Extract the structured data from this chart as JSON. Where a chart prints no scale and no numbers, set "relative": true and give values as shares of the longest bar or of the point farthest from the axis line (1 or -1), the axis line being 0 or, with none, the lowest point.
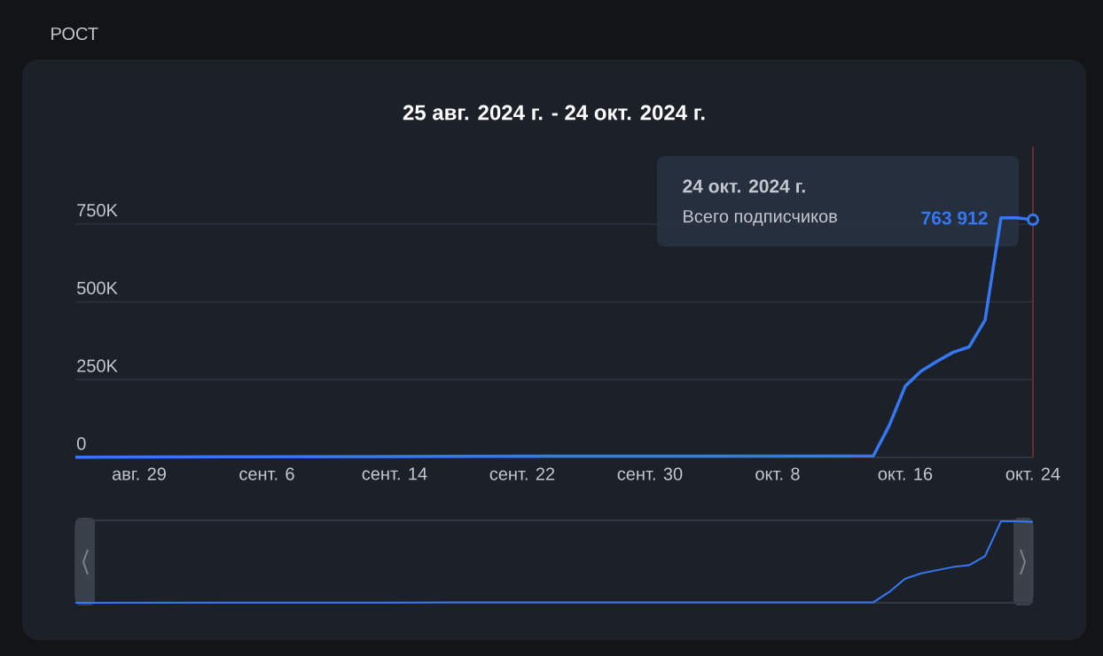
{
  "chart_data": [
    {
      "type": "line",
      "title": "25 авг. 2024 г. - 24 окт. 2024 г.",
      "annotations": [
        "РОСТ",
        "24 окт. 2024 г.",
        "Всего подписчиков",
        "763 912"
      ],
      "x": [
        "2024-08-25",
        "2024-09-04",
        "2024-09-14",
        "2024-09-24",
        "2024-10-04",
        "2024-10-14",
        "2024-10-15",
        "2024-10-16",
        "2024-10-17",
        "2024-10-18",
        "2024-10-19",
        "2024-10-20",
        "2024-10-21",
        "2024-10-22",
        "2024-10-23",
        "2024-10-24"
      ],
      "series": [
        {
          "color": "#3478f6",
          "values": [
            1000,
            2000,
            3000,
            4000,
            4000,
            5000,
            103000,
            229000,
            278000,
            309000,
            338000,
            355000,
            441000,
            770000,
            770000,
            763912
          ]
        }
      ],
      "xlim": [
        "2024-08-25",
        "2024-10-24"
      ],
      "xticks": [
        {
          "value": "2024-08-29",
          "label": "авг. 29"
        },
        {
          "value": "2024-09-06",
          "label": "сент. 6"
        },
        {
          "value": "2024-09-14",
          "label": "сент. 14"
        },
        {
          "value": "2024-09-22",
          "label": "сент. 22"
        },
        {
          "value": "2024-09-30",
          "label": "сент. 30"
        },
        {
          "value": "2024-10-08",
          "label": "окт. 8"
        },
        {
          "value": "2024-10-16",
          "label": "окт. 16"
        },
        {
          "value": "2024-10-24",
          "label": "окт. 24"
        }
      ],
      "ylim": [
        0,
        1000000
      ],
      "yticks": [
        0,
        {
          "value": 250000,
          "label": "250K"
        },
        {
          "value": 500000,
          "label": "500K"
        },
        {
          "value": 750000,
          "label": "750K"
        }
      ],
      "grid": "y",
      "ref_lines": [
        {
          "axis": "x",
          "value": "2024-10-24",
          "color": "#7a3232"
        }
      ]
    },
    {
      "type": "line",
      "relative": true,
      "x": [
        "2024-08-25",
        "2024-09-04",
        "2024-09-14",
        "2024-09-24",
        "2024-10-04",
        "2024-10-14",
        "2024-10-15",
        "2024-10-16",
        "2024-10-17",
        "2024-10-18",
        "2024-10-19",
        "2024-10-20",
        "2024-10-21",
        "2024-10-22",
        "2024-10-23",
        "2024-10-24"
      ],
      "series": [
        {
          "color": "#3478f6",
          "values": [
            0.001,
            0.003,
            0.004,
            0.005,
            0.005,
            0.006,
            0.134,
            0.297,
            0.361,
            0.401,
            0.439,
            0.461,
            0.573,
            1,
            1,
            0.992
          ]
        }
      ],
      "xlim": [
        "2024-08-25",
        "2024-10-24"
      ]
    }
  ]
}
